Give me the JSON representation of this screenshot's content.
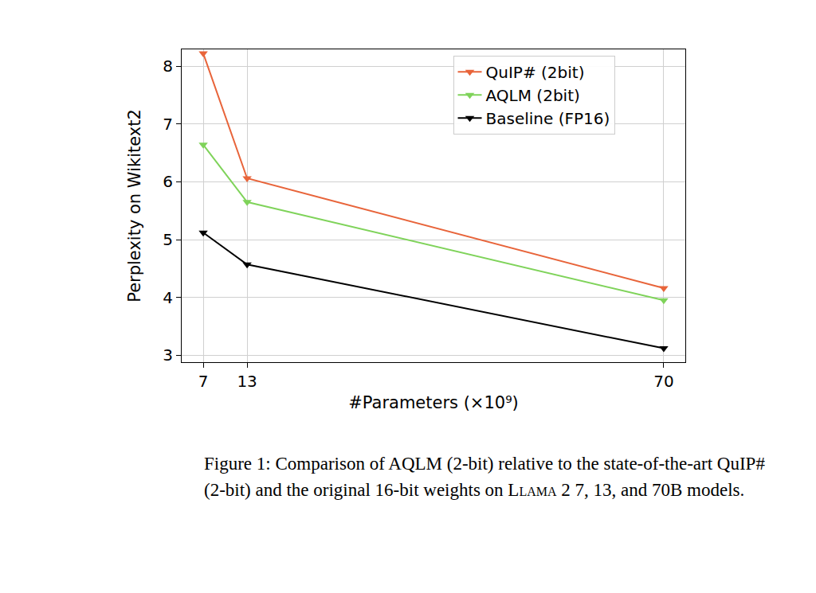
{
  "chart_data": {
    "type": "line",
    "x_label": "#Parameters (×10⁹)",
    "y_label": "Perplexity on Wikitext2",
    "x": [
      7,
      13,
      70
    ],
    "series": [
      {
        "name": "QuIP# (2bit)",
        "color": "#e8643a",
        "marker": "triangle-down",
        "values": [
          8.22,
          6.06,
          4.16
        ]
      },
      {
        "name": "AQLM (2bit)",
        "color": "#7fd35a",
        "marker": "triangle-down",
        "values": [
          6.64,
          5.65,
          3.95
        ]
      },
      {
        "name": "Baseline (FP16)",
        "color": "#000000",
        "marker": "triangle-down",
        "values": [
          5.12,
          4.57,
          3.12
        ]
      }
    ],
    "xlim": [
      4.05,
      72.95
    ],
    "xticks": [
      7,
      13,
      70
    ],
    "ylim": [
      2.88,
      8.29
    ],
    "yticks": [
      3,
      4,
      5,
      6,
      7,
      8
    ],
    "grid": true,
    "legend": "upper right",
    "caption": {
      "prefix": "Figure 1: Comparison of AQLM (2-bit) relative to the state-of-the-art QuIP# (2-bit) and the original 16-bit weights on ",
      "model": "Llama",
      "suffix": " 2 7, 13, and 70B models."
    }
  }
}
